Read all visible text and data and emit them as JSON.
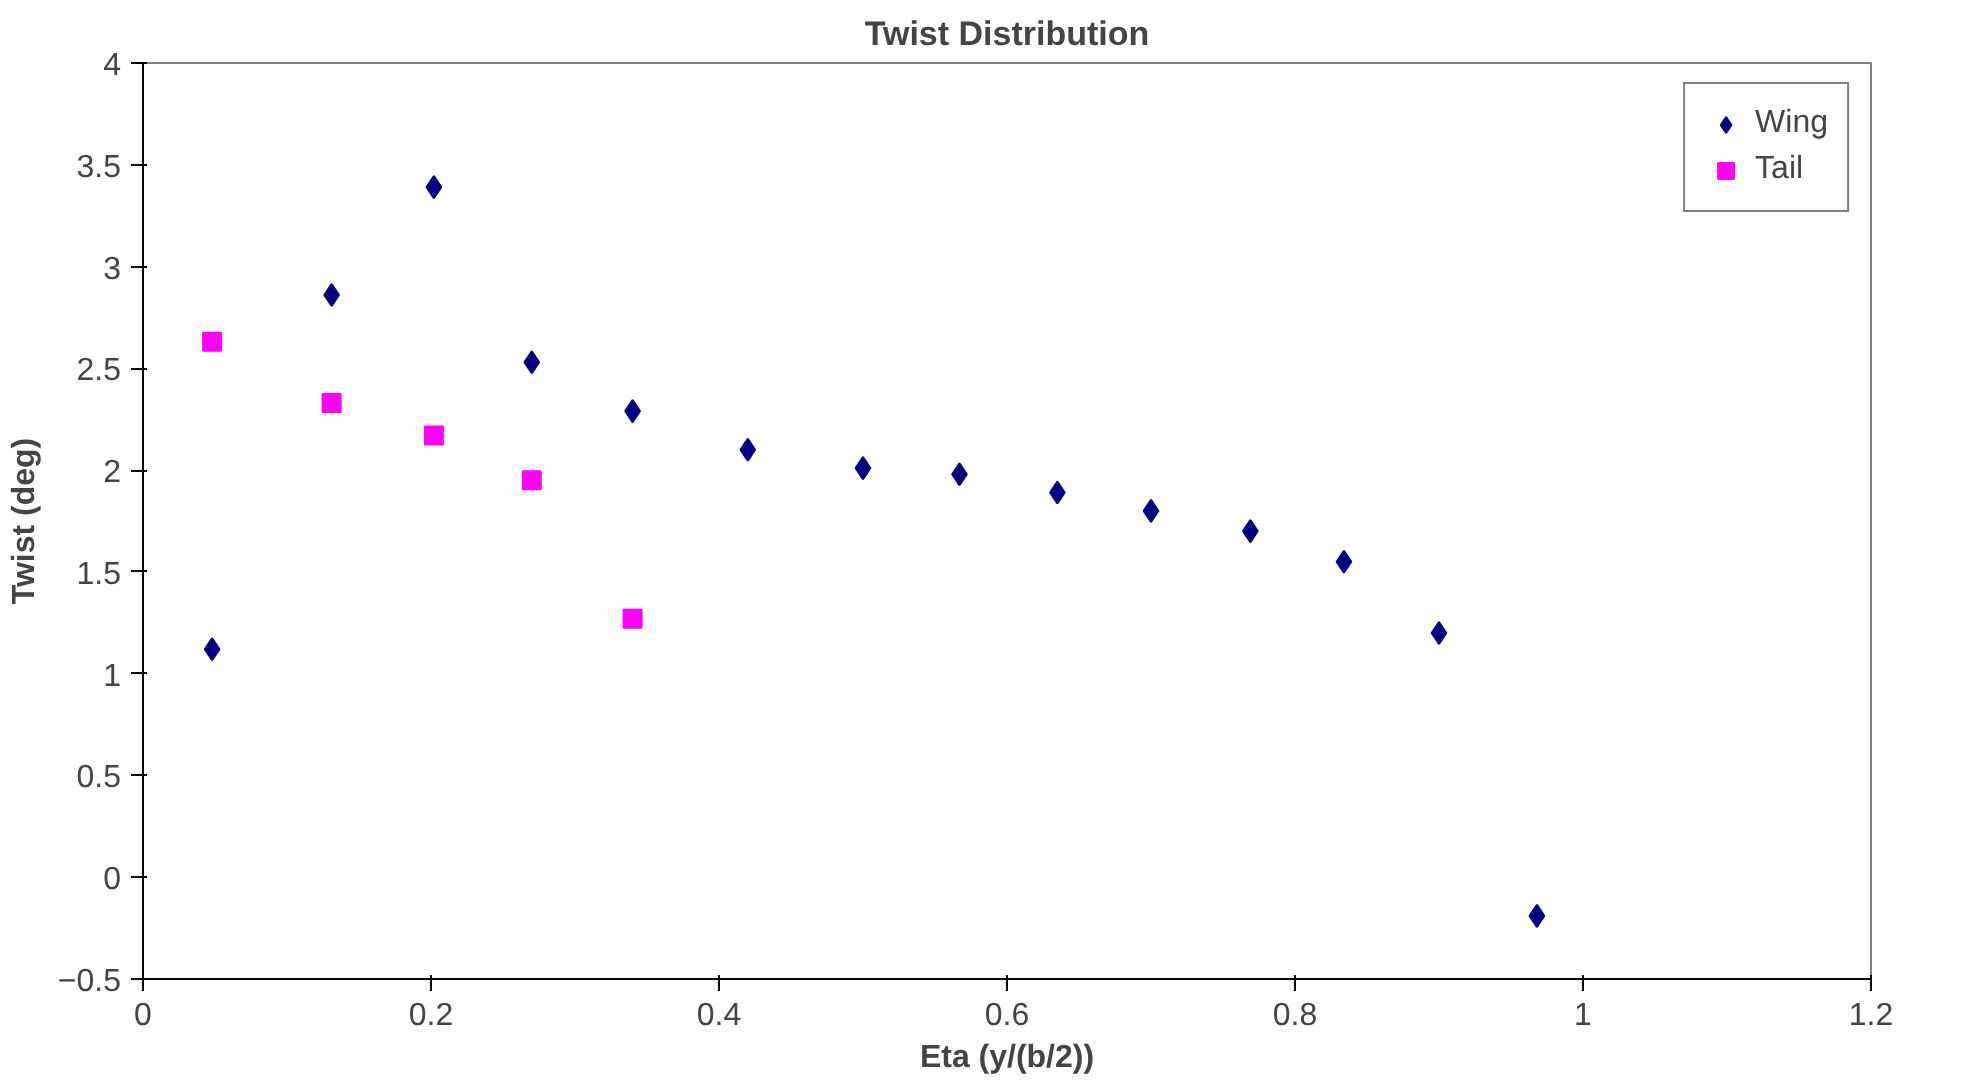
{
  "chart_data": {
    "type": "scatter",
    "title": "Twist Distribution",
    "xlabel": "Eta (y/(b/2))",
    "ylabel": "Twist (deg)",
    "xlim": [
      0,
      1.2
    ],
    "xticks": [
      0,
      0.2,
      0.4,
      0.6,
      0.8,
      1,
      1.2
    ],
    "ylim": [
      -0.5,
      4
    ],
    "yticks": [
      -0.5,
      0,
      0.5,
      1,
      1.5,
      2,
      2.5,
      3,
      3.5,
      4
    ],
    "grid": false,
    "legend": "top right",
    "series": [
      {
        "name": "Wing",
        "color": "#000080",
        "marker": "diamond",
        "x": [
          0.048,
          0.131,
          0.202,
          0.27,
          0.34,
          0.42,
          0.5,
          0.567,
          0.635,
          0.7,
          0.769,
          0.834,
          0.9,
          0.968
        ],
        "values": [
          1.12,
          2.86,
          3.39,
          2.53,
          2.29,
          2.1,
          2.01,
          1.98,
          1.89,
          1.8,
          1.7,
          1.55,
          1.2,
          -0.19
        ]
      },
      {
        "name": "Tail",
        "color": "#ff00ff",
        "marker": "square",
        "x": [
          0.048,
          0.131,
          0.202,
          0.27,
          0.34
        ],
        "values": [
          2.63,
          2.33,
          2.17,
          1.95,
          1.27
        ]
      }
    ]
  }
}
